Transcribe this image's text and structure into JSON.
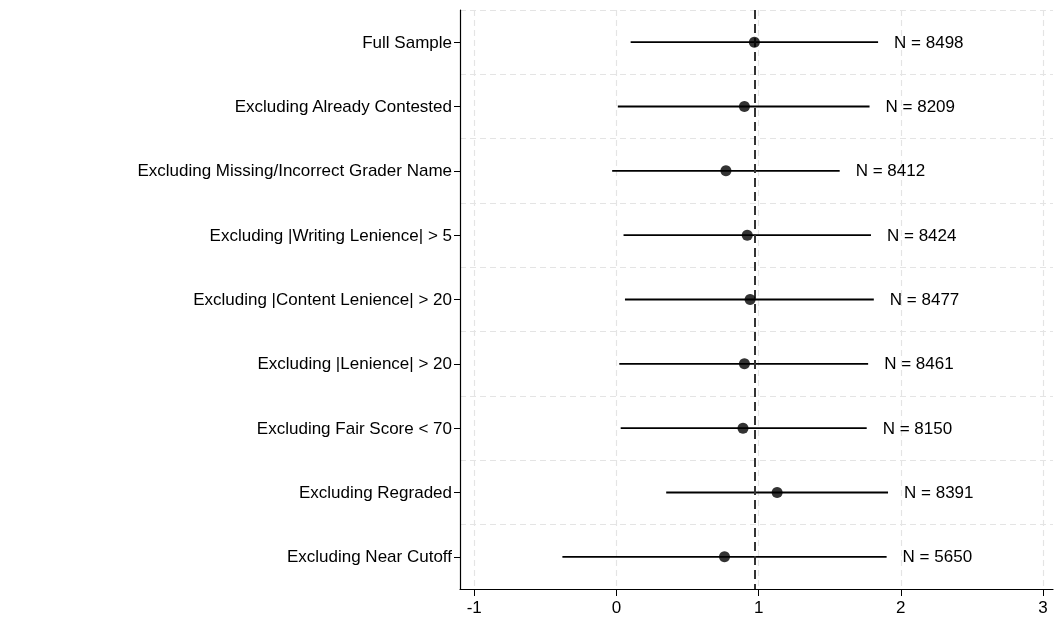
{
  "chart_data": {
    "type": "scatter",
    "orientation": "horizontal",
    "categories": [
      "Full Sample",
      "Excluding Already Contested",
      "Excluding Missing/Incorrect Grader Name",
      "Excluding |Writing Lenience| > 5",
      "Excluding |Content Lenience| > 20",
      "Excluding |Lenience| > 20",
      "Excluding Fair Score < 70",
      "Excluding Regraded",
      "Excluding Near Cutoff"
    ],
    "values": [
      0.97,
      0.9,
      0.77,
      0.92,
      0.94,
      0.9,
      0.89,
      1.13,
      0.76
    ],
    "errors": [
      [
        0.1,
        1.84
      ],
      [
        0.01,
        1.78
      ],
      [
        -0.03,
        1.57
      ],
      [
        0.05,
        1.79
      ],
      [
        0.06,
        1.81
      ],
      [
        0.02,
        1.77
      ],
      [
        0.03,
        1.76
      ],
      [
        0.35,
        1.91
      ],
      [
        -0.38,
        1.9
      ]
    ],
    "color": "#000000",
    "marker": "circle",
    "xlim": [
      -1.1,
      3.07
    ],
    "xticks": [
      -1,
      0,
      1,
      2,
      3
    ],
    "grid": true,
    "ref_lines": [
      {
        "axis": "x",
        "value": 0.97,
        "line_style": "dashed",
        "color": "#333333"
      }
    ],
    "annotations": [
      {
        "text": "N = 8498",
        "x": 1.84,
        "y": "Full Sample"
      },
      {
        "text": "N = 8209",
        "x": 1.78,
        "y": "Excluding Already Contested"
      },
      {
        "text": "N = 8412",
        "x": 1.57,
        "y": "Excluding Missing/Incorrect Grader Name"
      },
      {
        "text": "N = 8424",
        "x": 1.79,
        "y": "Excluding |Writing Lenience| > 5"
      },
      {
        "text": "N = 8477",
        "x": 1.81,
        "y": "Excluding |Content Lenience| > 20"
      },
      {
        "text": "N = 8461",
        "x": 1.77,
        "y": "Excluding |Lenience| > 20"
      },
      {
        "text": "N = 8150",
        "x": 1.76,
        "y": "Excluding Fair Score < 70"
      },
      {
        "text": "N = 8391",
        "x": 1.91,
        "y": "Excluding Regraded"
      },
      {
        "text": "N = 5650",
        "x": 1.9,
        "y": "Excluding Near Cutoff"
      }
    ]
  }
}
